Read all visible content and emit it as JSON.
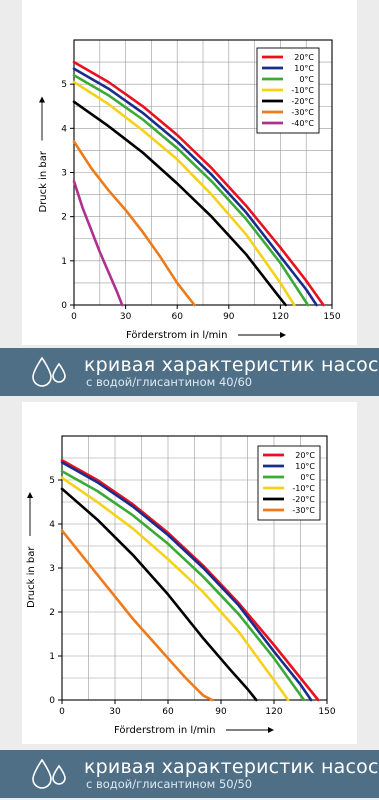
{
  "chart_data": [
    {
      "type": "line",
      "title": "",
      "xlabel": "Förderstrom in l/min",
      "ylabel": "Druck in bar",
      "xlim": [
        0,
        150
      ],
      "ylim": [
        0,
        6
      ],
      "xticks": [
        "0",
        "30",
        "60",
        "90",
        "120",
        "150"
      ],
      "yticks": [
        "0",
        "1",
        "2",
        "3",
        "4",
        "5"
      ],
      "grid": true,
      "legend_position": "top-right",
      "series": [
        {
          "name": "20°C",
          "color": "#e8121f",
          "x": [
            0,
            20,
            40,
            60,
            80,
            100,
            120,
            135,
            145
          ],
          "y": [
            5.5,
            5.05,
            4.5,
            3.85,
            3.1,
            2.25,
            1.3,
            0.55,
            0
          ]
        },
        {
          "name": "10°C",
          "color": "#1a2d8c",
          "x": [
            0,
            20,
            40,
            60,
            80,
            100,
            120,
            135,
            141
          ],
          "y": [
            5.35,
            4.9,
            4.35,
            3.7,
            2.95,
            2.1,
            1.1,
            0.35,
            0
          ]
        },
        {
          "name": "0°C",
          "color": "#3aaa35",
          "x": [
            0,
            20,
            40,
            60,
            80,
            100,
            120,
            136
          ],
          "y": [
            5.2,
            4.75,
            4.2,
            3.55,
            2.8,
            1.95,
            0.95,
            0
          ]
        },
        {
          "name": "-10°C",
          "color": "#f5d21a",
          "x": [
            0,
            20,
            40,
            60,
            80,
            100,
            120,
            128
          ],
          "y": [
            5.05,
            4.55,
            3.95,
            3.3,
            2.5,
            1.6,
            0.5,
            0
          ]
        },
        {
          "name": "-20°C",
          "color": "#000000",
          "x": [
            0,
            20,
            40,
            60,
            80,
            100,
            117,
            123
          ],
          "y": [
            4.6,
            4.05,
            3.45,
            2.75,
            2.0,
            1.15,
            0.3,
            0
          ]
        },
        {
          "name": "-30°C",
          "color": "#ee7a1a",
          "x": [
            0,
            10,
            20,
            30,
            40,
            50,
            60,
            70
          ],
          "y": [
            3.7,
            3.1,
            2.6,
            2.15,
            1.65,
            1.1,
            0.5,
            0
          ]
        },
        {
          "name": "-40°C",
          "color": "#b0308e",
          "x": [
            0,
            5,
            10,
            15,
            20,
            25,
            28
          ],
          "y": [
            2.8,
            2.2,
            1.7,
            1.2,
            0.75,
            0.3,
            0
          ]
        }
      ]
    },
    {
      "type": "line",
      "title": "",
      "xlabel": "Förderstrom in l/min",
      "ylabel": "Druck in bar",
      "xlim": [
        0,
        150
      ],
      "ylim": [
        0,
        6
      ],
      "xticks": [
        "0",
        "30",
        "60",
        "90",
        "120",
        "150"
      ],
      "yticks": [
        "0",
        "1",
        "2",
        "3",
        "4",
        "5"
      ],
      "grid": true,
      "legend_position": "top-right",
      "series": [
        {
          "name": "20°C",
          "color": "#e8121f",
          "x": [
            0,
            20,
            40,
            60,
            80,
            100,
            120,
            135,
            145
          ],
          "y": [
            5.45,
            5.0,
            4.45,
            3.8,
            3.05,
            2.2,
            1.25,
            0.5,
            0
          ]
        },
        {
          "name": "10°C",
          "color": "#1a2d8c",
          "x": [
            0,
            20,
            40,
            60,
            80,
            100,
            120,
            135,
            141
          ],
          "y": [
            5.4,
            4.95,
            4.4,
            3.75,
            3.0,
            2.15,
            1.1,
            0.35,
            0
          ]
        },
        {
          "name": "0°C",
          "color": "#3aaa35",
          "x": [
            0,
            20,
            40,
            60,
            80,
            100,
            120,
            137
          ],
          "y": [
            5.2,
            4.75,
            4.2,
            3.55,
            2.8,
            1.95,
            0.95,
            0
          ]
        },
        {
          "name": "-10°C",
          "color": "#f5d21a",
          "x": [
            0,
            20,
            40,
            60,
            80,
            100,
            120,
            128
          ],
          "y": [
            5.05,
            4.5,
            3.9,
            3.2,
            2.45,
            1.55,
            0.45,
            0
          ]
        },
        {
          "name": "-20°C",
          "color": "#000000",
          "x": [
            0,
            20,
            40,
            60,
            80,
            95,
            105,
            110
          ],
          "y": [
            4.8,
            4.1,
            3.3,
            2.4,
            1.4,
            0.7,
            0.25,
            0
          ]
        },
        {
          "name": "-30°C",
          "color": "#ee7a1a",
          "x": [
            0,
            10,
            20,
            30,
            40,
            50,
            60,
            70,
            80,
            85
          ],
          "y": [
            3.85,
            3.35,
            2.85,
            2.35,
            1.85,
            1.4,
            0.95,
            0.5,
            0.1,
            0
          ]
        }
      ]
    }
  ],
  "banners": [
    {
      "title": "кривая характеристик насоса",
      "subtitle": "с водой/глисантином 40/60"
    },
    {
      "title": "кривая характеристик насоса",
      "subtitle": "с водой/глисантином 50/50"
    }
  ]
}
